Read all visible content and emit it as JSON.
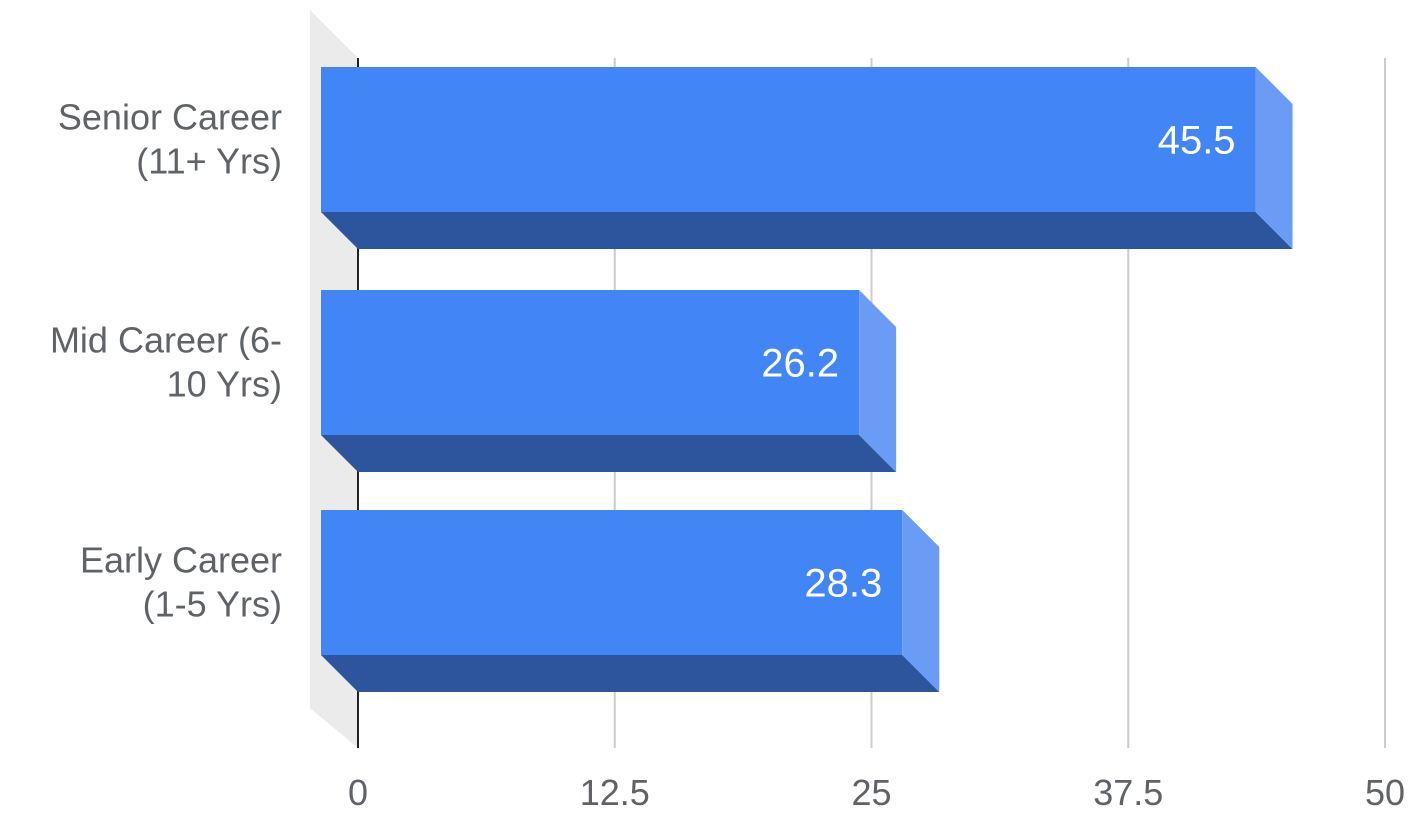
{
  "chart_data": {
    "type": "bar",
    "orientation": "horizontal",
    "style": "3d",
    "categories": [
      [
        "Senior Career",
        "(11+ Yrs)"
      ],
      [
        "Mid Career (6-",
        "10 Yrs)"
      ],
      [
        "Early Career",
        "(1-5 Yrs)"
      ]
    ],
    "values": [
      45.5,
      26.2,
      28.3
    ],
    "data_labels": [
      "45.5",
      "26.2",
      "28.3"
    ],
    "title": "",
    "xlabel": "",
    "ylabel": "",
    "xlim": [
      0,
      50
    ],
    "ticks": [
      0,
      12.5,
      25,
      37.5,
      50
    ],
    "tick_labels": [
      "0",
      "12.5",
      "25",
      "37.5",
      "50"
    ],
    "grid": true,
    "legend": "none",
    "colors": {
      "bar_front": "#4285f4",
      "bar_bottom": "#2c559e",
      "bar_side": "#6a9cf5",
      "grid": "#cccccc",
      "axis": "#222222",
      "floor": "#ebebeb",
      "text": "#5f6368",
      "data_label": "#ffffff"
    }
  }
}
